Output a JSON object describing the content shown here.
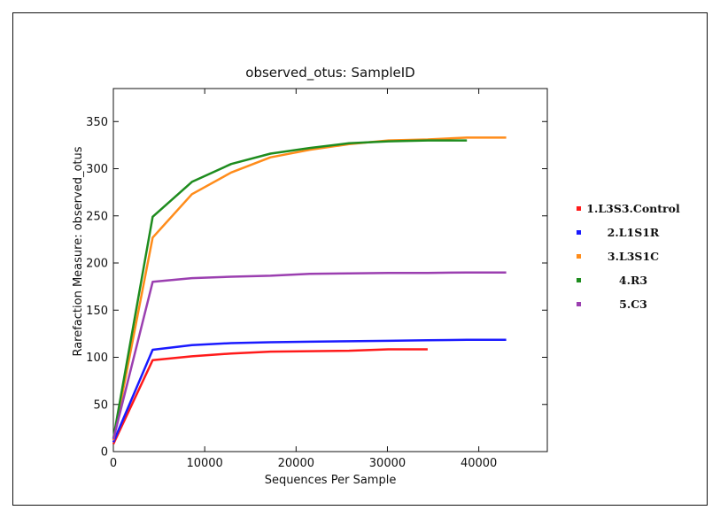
{
  "chart_data": {
    "type": "line",
    "title": "observed_otus: SampleID",
    "xlabel": "Sequences Per Sample",
    "ylabel": "Rarefaction Measure: observed_otus",
    "xlim": [
      0,
      47500
    ],
    "ylim": [
      0,
      385
    ],
    "xticks": [
      0,
      10000,
      20000,
      30000,
      40000
    ],
    "yticks": [
      0,
      50,
      100,
      150,
      200,
      250,
      300,
      350
    ],
    "grid": false,
    "legend_position": "right, outside plot",
    "series": [
      {
        "name": "1.L3S3.Control",
        "color": "#ff1a1a",
        "x": [
          0,
          4300,
          8600,
          12900,
          17200,
          21500,
          25800,
          30100,
          34400
        ],
        "y": [
          8,
          97,
          101,
          104,
          106,
          106.5,
          107,
          108.5,
          108.5
        ]
      },
      {
        "name": "2.L1S1R",
        "color": "#1a1aff",
        "x": [
          0,
          4300,
          8600,
          12900,
          17200,
          21500,
          25800,
          30100,
          34400,
          38700,
          43000
        ],
        "y": [
          10,
          108,
          113,
          115,
          116,
          116.5,
          117,
          117.5,
          118,
          118.5,
          118.5
        ]
      },
      {
        "name": "3.L3S1C",
        "color": "#ff8c1a",
        "x": [
          0,
          4300,
          8600,
          12900,
          17200,
          21500,
          25800,
          30100,
          34400,
          38700,
          43000
        ],
        "y": [
          12,
          227,
          273,
          296,
          312,
          320,
          326,
          330,
          331,
          333,
          333
        ]
      },
      {
        "name": "4.R3",
        "color": "#1e8c1e",
        "x": [
          0,
          4300,
          8600,
          12900,
          17200,
          21500,
          25800,
          30100,
          34400,
          38700
        ],
        "y": [
          14,
          249,
          286,
          305,
          316,
          322,
          327,
          329,
          330,
          330
        ]
      },
      {
        "name": "5.C3",
        "color": "#9b3fb0",
        "x": [
          0,
          4300,
          8600,
          12900,
          17200,
          21500,
          25800,
          30100,
          34400,
          38700,
          43000
        ],
        "y": [
          13,
          180,
          184,
          185.5,
          186.5,
          188.5,
          189,
          189.5,
          189.5,
          190,
          190
        ]
      }
    ]
  }
}
